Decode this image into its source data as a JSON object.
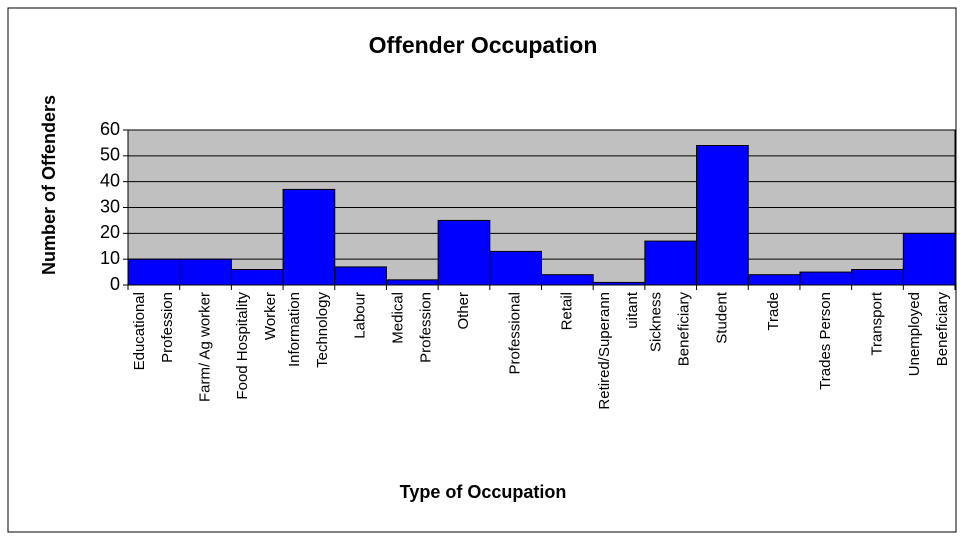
{
  "chart_data": {
    "type": "bar",
    "title": "Offender Occupation",
    "xlabel": "Type of Occupation",
    "ylabel": "Number of Offenders",
    "categories": [
      [
        "Educational",
        "Profession"
      ],
      [
        "Farm/ Ag worker"
      ],
      [
        "Food Hospitality",
        "Worker"
      ],
      [
        "Information",
        "Technology"
      ],
      [
        "Labour"
      ],
      [
        "Medical",
        "Profession"
      ],
      [
        "Other"
      ],
      [
        "Professional"
      ],
      [
        "Retail"
      ],
      [
        "Retired/Superann",
        "uitant"
      ],
      [
        "Sickness",
        "Beneficiary"
      ],
      [
        "Student"
      ],
      [
        "Trade"
      ],
      [
        "Trades Person"
      ],
      [
        "Transport"
      ],
      [
        "Unemployed",
        "Beneficiary"
      ]
    ],
    "values": [
      10,
      10,
      6,
      37,
      7,
      2,
      25,
      13,
      4,
      1,
      17,
      54,
      4,
      5,
      6,
      20
    ],
    "color": "#0000ff",
    "plot_background": "#c0c0c0",
    "ylim": [
      0,
      60
    ],
    "yticks": [
      0,
      10,
      20,
      30,
      40,
      50,
      60
    ],
    "grid": true
  }
}
